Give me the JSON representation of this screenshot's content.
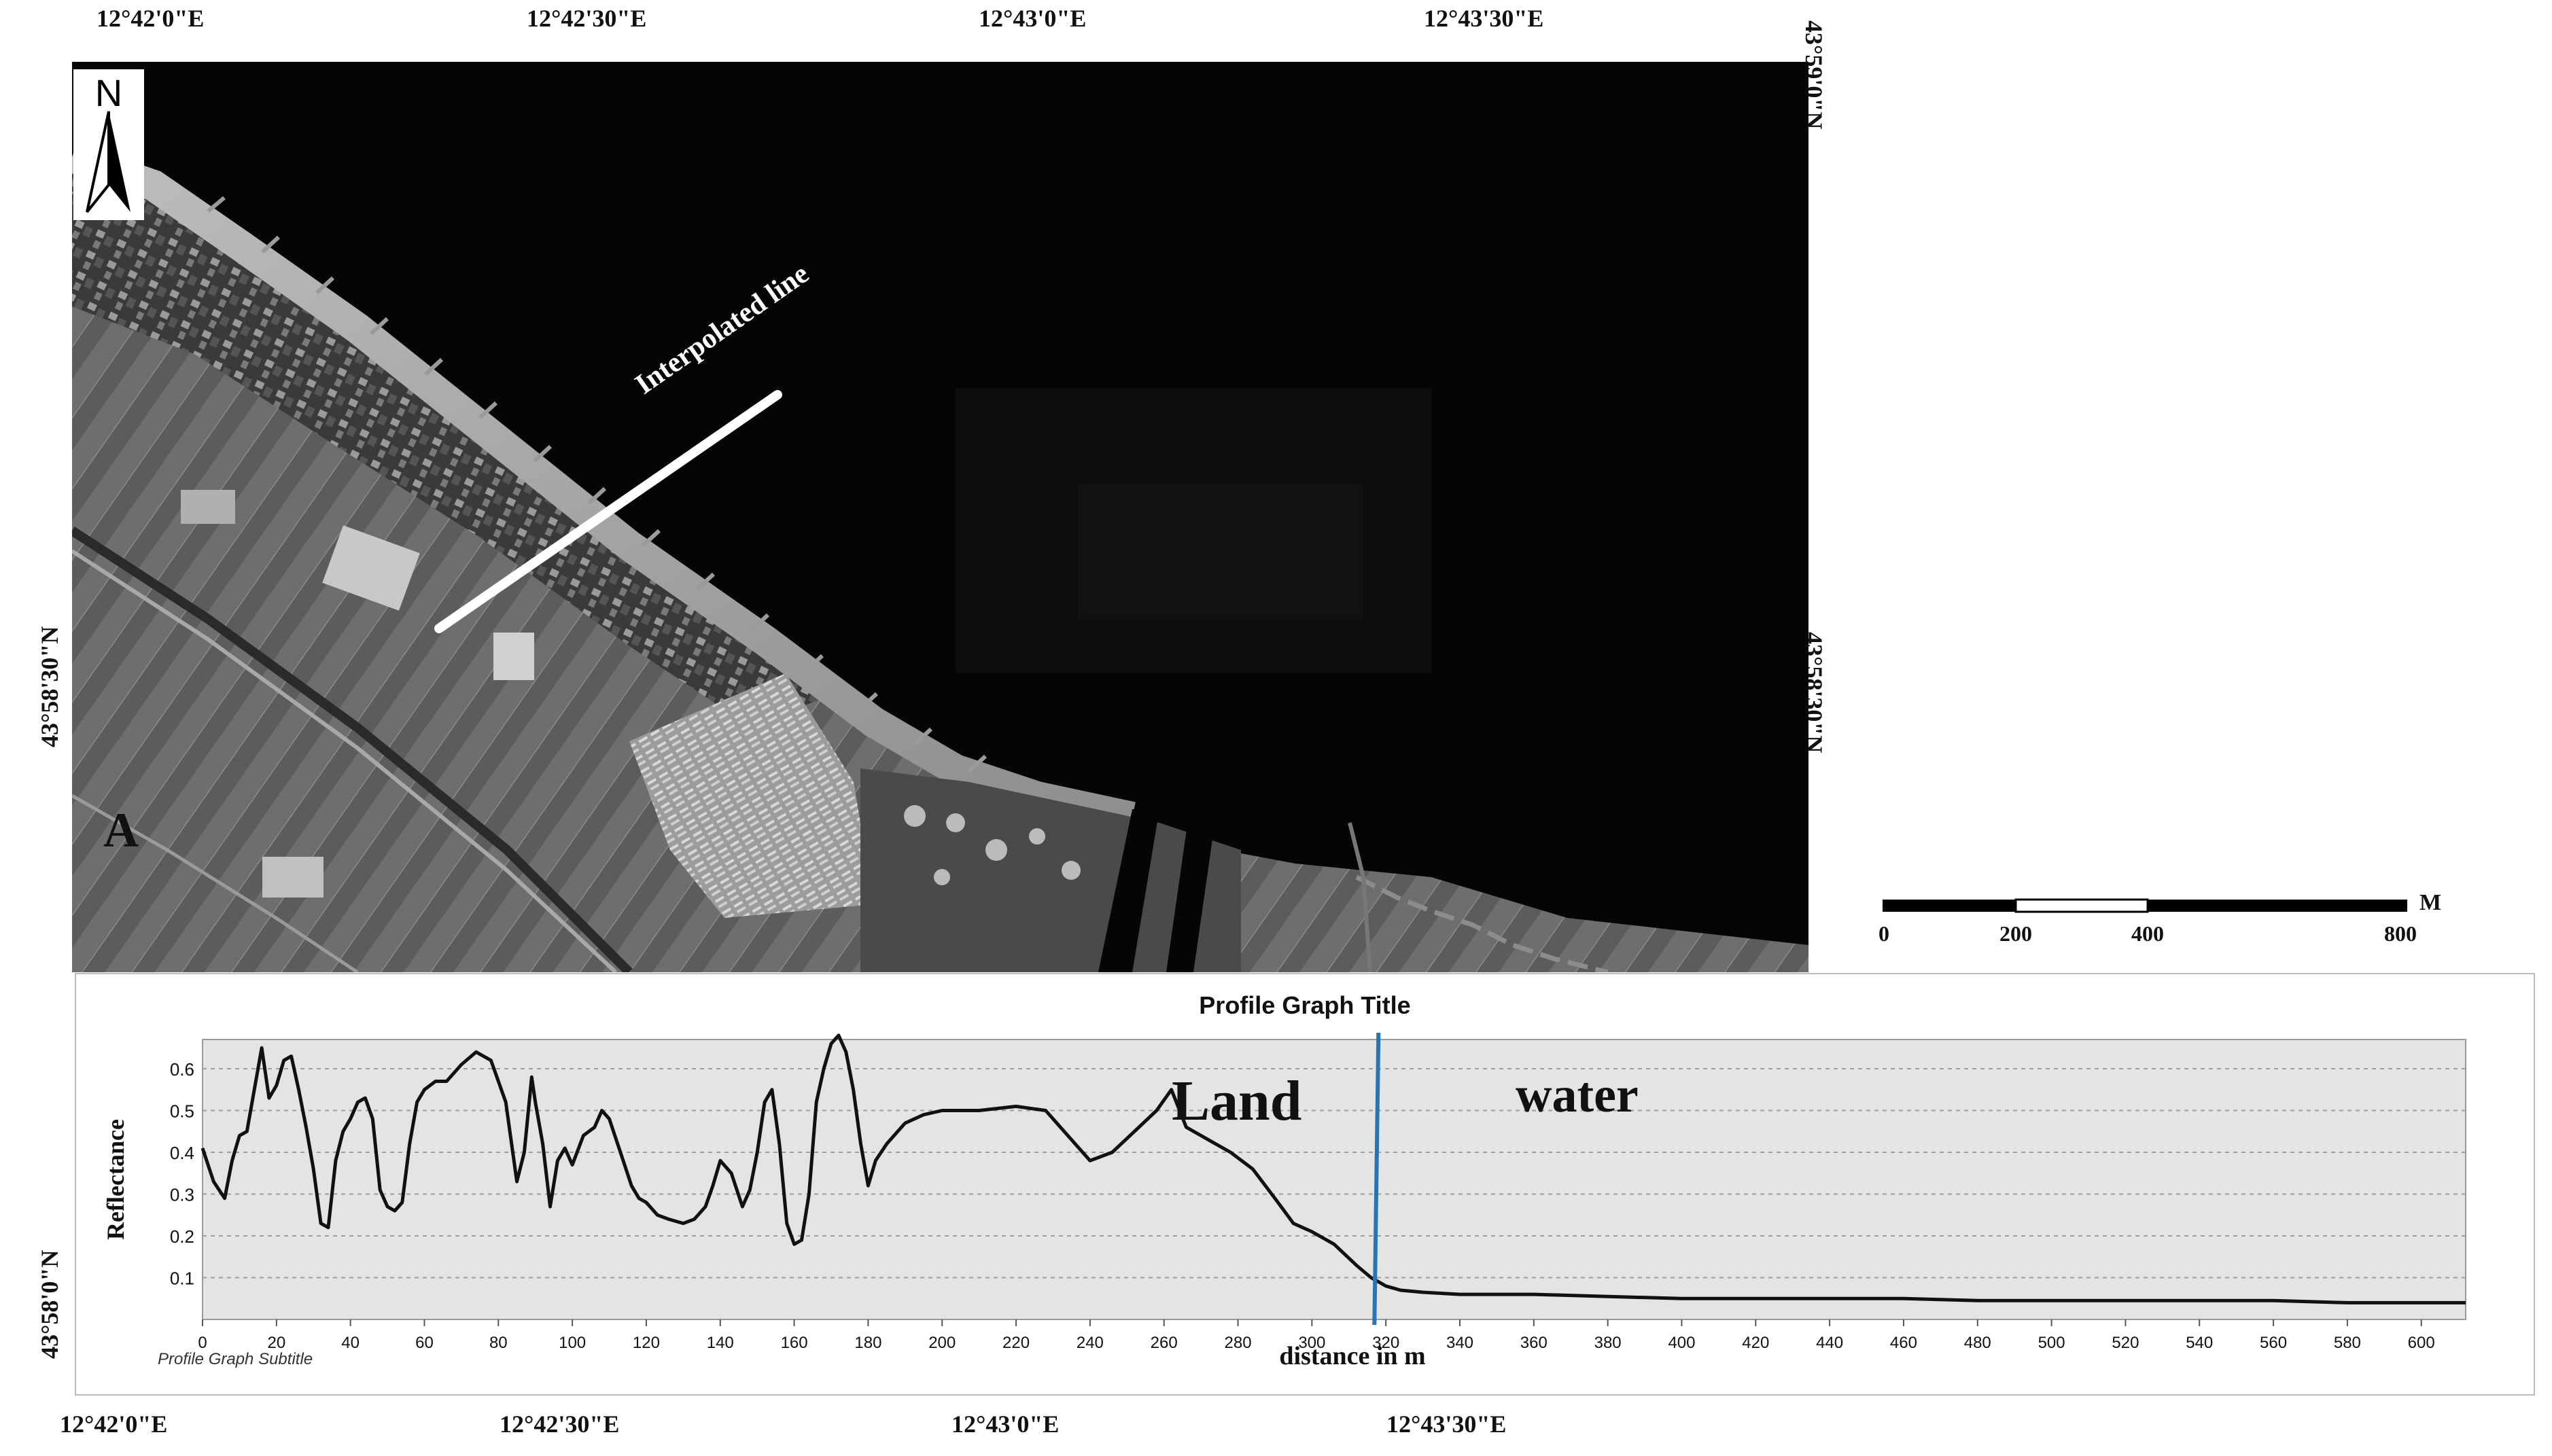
{
  "coords": {
    "top": [
      "12°42'0\"E",
      "12°42'30\"E",
      "12°43'0\"E",
      "12°43'30\"E"
    ],
    "bottom": [
      "12°42'0\"E",
      "12°42'30\"E",
      "12°43'0\"E",
      "12°43'30\"E"
    ],
    "right": [
      "43°59'0\"N",
      "43°58'30\"N"
    ],
    "left": [
      "43°58'30\"N",
      "43°58'0\"N"
    ]
  },
  "map": {
    "north_label": "N",
    "interpolated_label": "Interpolated line",
    "panel_label": "A"
  },
  "scale_bar": {
    "unit": "M",
    "ticks": [
      "0",
      "200",
      "400",
      "800"
    ]
  },
  "chart_data": {
    "type": "line",
    "title": "Profile Graph Title",
    "subtitle": "Profile Graph Subtitle",
    "xlabel": "distance in m",
    "ylabel": "Reflectance",
    "xlim": [
      0,
      612
    ],
    "ylim": [
      0,
      0.67
    ],
    "grid": true,
    "x_ticks": [
      0,
      20,
      40,
      60,
      80,
      100,
      120,
      140,
      160,
      180,
      200,
      220,
      240,
      260,
      280,
      300,
      320,
      340,
      360,
      380,
      400,
      420,
      440,
      460,
      480,
      500,
      520,
      540,
      560,
      580,
      600
    ],
    "y_ticks": [
      0.1,
      0.2,
      0.3,
      0.4,
      0.5,
      0.6
    ],
    "annotations": [
      "Land",
      "water"
    ],
    "boundary_x": 318,
    "x": [
      0,
      3,
      6,
      8,
      10,
      12,
      14,
      16,
      18,
      20,
      22,
      24,
      26,
      28,
      30,
      32,
      34,
      36,
      38,
      40,
      42,
      44,
      46,
      48,
      50,
      52,
      54,
      56,
      58,
      60,
      63,
      66,
      70,
      74,
      78,
      82,
      85,
      87,
      89,
      90,
      92,
      94,
      96,
      98,
      100,
      103,
      106,
      108,
      110,
      113,
      116,
      118,
      120,
      123,
      126,
      130,
      133,
      136,
      138,
      140,
      143,
      146,
      148,
      150,
      152,
      154,
      156,
      158,
      160,
      162,
      164,
      166,
      168,
      170,
      172,
      174,
      176,
      178,
      180,
      182,
      185,
      190,
      195,
      200,
      210,
      220,
      228,
      234,
      240,
      246,
      252,
      258,
      262,
      266,
      272,
      278,
      284,
      290,
      295,
      300,
      306,
      312,
      316,
      320,
      324,
      330,
      340,
      360,
      380,
      400,
      420,
      440,
      460,
      480,
      500,
      520,
      540,
      560,
      580,
      600,
      612
    ],
    "y": [
      0.41,
      0.33,
      0.29,
      0.38,
      0.44,
      0.45,
      0.55,
      0.65,
      0.53,
      0.56,
      0.62,
      0.63,
      0.55,
      0.46,
      0.36,
      0.23,
      0.22,
      0.38,
      0.45,
      0.48,
      0.52,
      0.53,
      0.48,
      0.31,
      0.27,
      0.26,
      0.28,
      0.42,
      0.52,
      0.55,
      0.57,
      0.57,
      0.61,
      0.64,
      0.62,
      0.52,
      0.33,
      0.4,
      0.58,
      0.52,
      0.42,
      0.27,
      0.38,
      0.41,
      0.37,
      0.44,
      0.46,
      0.5,
      0.48,
      0.4,
      0.32,
      0.29,
      0.28,
      0.25,
      0.24,
      0.23,
      0.24,
      0.27,
      0.32,
      0.38,
      0.35,
      0.27,
      0.31,
      0.4,
      0.52,
      0.55,
      0.42,
      0.23,
      0.18,
      0.19,
      0.3,
      0.52,
      0.6,
      0.66,
      0.68,
      0.64,
      0.55,
      0.42,
      0.32,
      0.38,
      0.42,
      0.47,
      0.49,
      0.5,
      0.5,
      0.51,
      0.5,
      0.44,
      0.38,
      0.4,
      0.45,
      0.5,
      0.55,
      0.46,
      0.43,
      0.4,
      0.36,
      0.29,
      0.23,
      0.21,
      0.18,
      0.13,
      0.1,
      0.08,
      0.07,
      0.065,
      0.06,
      0.06,
      0.055,
      0.05,
      0.05,
      0.05,
      0.05,
      0.045,
      0.045,
      0.045,
      0.045,
      0.045,
      0.04,
      0.04,
      0.04
    ]
  }
}
